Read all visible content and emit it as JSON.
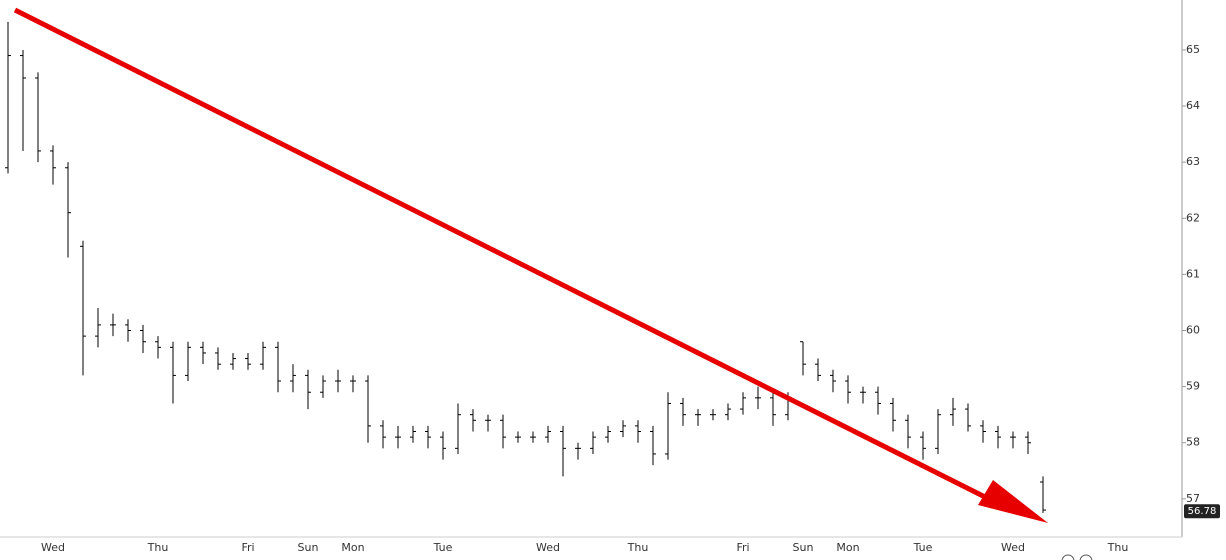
{
  "chart_data": {
    "type": "ohlc",
    "categories": [
      null,
      null,
      null,
      "Wed",
      null,
      null,
      null,
      null,
      null,
      null,
      "Thu",
      null,
      null,
      null,
      null,
      null,
      "Fri",
      null,
      null,
      null,
      "Sun",
      null,
      null,
      "Mon",
      null,
      null,
      null,
      null,
      null,
      "Tue",
      null,
      null,
      null,
      null,
      null,
      null,
      "Wed",
      null,
      null,
      null,
      null,
      null,
      "Thu",
      null,
      null,
      null,
      null,
      null,
      null,
      "Fri",
      null,
      null,
      null,
      "Sun",
      null,
      null,
      "Mon",
      null,
      null,
      null,
      null,
      "Tue",
      null,
      null,
      null,
      null,
      null,
      "Wed",
      null,
      null,
      null,
      null,
      null,
      null,
      "Thu"
    ],
    "open": [
      62.9,
      64.9,
      64.5,
      63.2,
      62.9,
      61.5,
      59.9,
      60.1,
      60.1,
      60.0,
      59.8,
      59.7,
      59.2,
      59.7,
      59.6,
      59.4,
      59.5,
      59.4,
      59.7,
      59.1,
      59.2,
      58.9,
      59.1,
      59.1,
      59.1,
      58.3,
      58.1,
      58.1,
      58.2,
      58.1,
      57.9,
      58.5,
      58.4,
      58.4,
      58.1,
      58.1,
      58.1,
      58.2,
      57.9,
      57.9,
      58.1,
      58.2,
      58.3,
      58.2,
      57.8,
      58.7,
      58.5,
      58.5,
      58.5,
      58.6,
      58.8,
      58.8,
      58.5,
      59.8,
      59.4,
      59.2,
      59.1,
      58.9,
      58.9,
      58.7,
      58.4,
      58.1,
      57.9,
      58.5,
      58.6,
      58.3,
      58.2,
      58.1,
      58.1,
      57.3,
      null,
      null,
      null,
      null,
      null
    ],
    "high": [
      65.5,
      65.0,
      64.6,
      63.3,
      63.0,
      61.6,
      60.4,
      60.3,
      60.2,
      60.1,
      59.9,
      59.8,
      59.8,
      59.8,
      59.7,
      59.6,
      59.6,
      59.8,
      59.8,
      59.4,
      59.3,
      59.2,
      59.3,
      59.2,
      59.2,
      58.4,
      58.3,
      58.3,
      58.3,
      58.2,
      58.7,
      58.6,
      58.5,
      58.5,
      58.2,
      58.2,
      58.3,
      58.3,
      58.0,
      58.2,
      58.3,
      58.4,
      58.4,
      58.3,
      58.9,
      58.8,
      58.6,
      58.6,
      58.7,
      58.9,
      59.0,
      58.9,
      58.9,
      59.8,
      59.5,
      59.3,
      59.2,
      59.0,
      59.0,
      58.8,
      58.5,
      58.2,
      58.6,
      58.8,
      58.7,
      58.4,
      58.3,
      58.2,
      58.2,
      57.4,
      null,
      null,
      null,
      null,
      null
    ],
    "low": [
      62.8,
      63.2,
      63.0,
      62.6,
      61.3,
      59.2,
      59.7,
      59.9,
      59.8,
      59.6,
      59.5,
      58.7,
      59.1,
      59.4,
      59.3,
      59.3,
      59.3,
      59.3,
      58.9,
      58.9,
      58.6,
      58.8,
      58.9,
      58.9,
      58.0,
      57.9,
      57.9,
      58.0,
      57.9,
      57.7,
      57.8,
      58.2,
      58.2,
      57.9,
      58.0,
      58.0,
      58.0,
      57.4,
      57.7,
      57.8,
      58.0,
      58.1,
      58.0,
      57.6,
      57.7,
      58.3,
      58.3,
      58.4,
      58.4,
      58.5,
      58.6,
      58.3,
      58.4,
      59.2,
      59.1,
      58.9,
      58.7,
      58.7,
      58.5,
      58.2,
      57.9,
      57.7,
      57.8,
      58.3,
      58.2,
      58.0,
      57.9,
      57.9,
      57.8,
      56.75,
      null,
      null,
      null,
      null,
      null
    ],
    "close": [
      64.9,
      64.5,
      63.2,
      62.9,
      62.1,
      59.9,
      60.1,
      60.1,
      60.0,
      59.8,
      59.7,
      59.2,
      59.7,
      59.6,
      59.4,
      59.5,
      59.4,
      59.7,
      59.1,
      59.2,
      58.9,
      59.1,
      59.1,
      59.1,
      58.3,
      58.1,
      58.1,
      58.2,
      58.1,
      57.9,
      58.5,
      58.4,
      58.4,
      58.1,
      58.1,
      58.1,
      58.2,
      57.9,
      57.9,
      58.1,
      58.2,
      58.3,
      58.2,
      57.8,
      58.7,
      58.5,
      58.5,
      58.5,
      58.6,
      58.8,
      58.8,
      58.5,
      58.8,
      59.4,
      59.2,
      59.1,
      58.9,
      58.9,
      58.7,
      58.4,
      58.1,
      57.9,
      58.5,
      58.6,
      58.3,
      58.2,
      58.1,
      58.1,
      58.0,
      56.8,
      null,
      null,
      null,
      null,
      null
    ],
    "color": "#000000",
    "last_price": 56.78,
    "ylim": [
      56.32,
      65.89
    ],
    "yticks": [
      57,
      58,
      59,
      60,
      61,
      62,
      63,
      64,
      65
    ]
  }
}
